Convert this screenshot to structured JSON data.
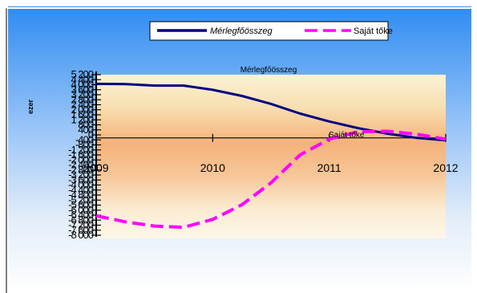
{
  "chart_data": {
    "type": "line",
    "title": "",
    "xlabel": "",
    "ylabel": "ezer",
    "x": [
      "2009",
      "2010",
      "2011",
      "2012"
    ],
    "xlim": [
      2009,
      2012
    ],
    "ylim": [
      -8000,
      5200
    ],
    "y_ticks": [
      "5 200",
      "4 400",
      "4 000",
      "3 600",
      "3 200",
      "2 800",
      "2 400",
      "2 000",
      "1 600",
      "1 200",
      "800",
      "400",
      "0",
      "-400",
      "-800",
      "-1 200",
      "-1 600",
      "-2 000",
      "-2 400",
      "-2 800",
      "-3 200",
      "-3 600",
      "-4 000",
      "-4 400",
      "-4 800",
      "-5 200",
      "-5 600",
      "-6 000",
      "-6 400",
      "-6 800",
      "-7 200",
      "-7 600",
      "-8 000"
    ],
    "legend_position": "top",
    "grid": false,
    "series": [
      {
        "name": "Mérlegfőösszeg",
        "color": "#000080",
        "style": "solid",
        "label": "Mérlegfőösszeg",
        "points": [
          [
            2009.0,
            4450
          ],
          [
            2009.25,
            4420
          ],
          [
            2009.5,
            4300
          ],
          [
            2009.75,
            4300
          ],
          [
            2010.0,
            3950
          ],
          [
            2010.25,
            3450
          ],
          [
            2010.5,
            2800
          ],
          [
            2010.75,
            2000
          ],
          [
            2011.0,
            1350
          ],
          [
            2011.25,
            800
          ],
          [
            2011.5,
            350
          ],
          [
            2011.75,
            0
          ],
          [
            2012.0,
            -200
          ]
        ]
      },
      {
        "name": "Saját tőke",
        "color": "#ff00ff",
        "style": "dashed",
        "label": "Saját tőke",
        "points": [
          [
            2009.0,
            -6400
          ],
          [
            2009.25,
            -6900
          ],
          [
            2009.5,
            -7250
          ],
          [
            2009.75,
            -7350
          ],
          [
            2010.0,
            -6700
          ],
          [
            2010.25,
            -5500
          ],
          [
            2010.5,
            -3700
          ],
          [
            2010.75,
            -1400
          ],
          [
            2011.0,
            -100
          ],
          [
            2011.25,
            500
          ],
          [
            2011.5,
            550
          ],
          [
            2011.75,
            300
          ],
          [
            2012.0,
            -100
          ]
        ]
      }
    ]
  }
}
